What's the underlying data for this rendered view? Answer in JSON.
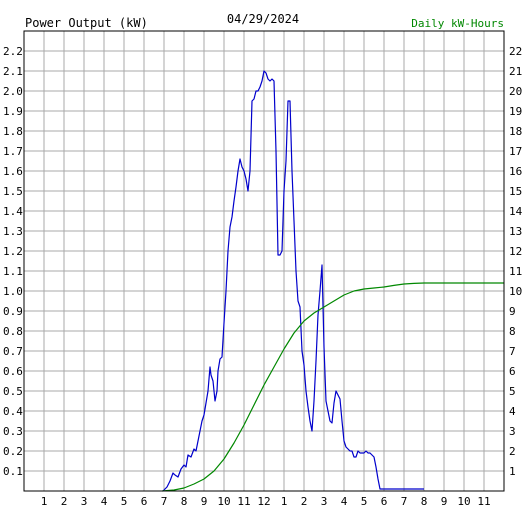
{
  "chart_data": {
    "type": "line",
    "title": "04/29/2024",
    "left_axis_label": "Power Output (kW)",
    "right_axis_label": "Daily kW-Hours",
    "left_axis_color": "#0000cc",
    "right_axis_color": "#008800",
    "grid": true,
    "x_ticks": [
      "1",
      "2",
      "3",
      "4",
      "5",
      "6",
      "7",
      "8",
      "9",
      "10",
      "11",
      "12",
      "1",
      "2",
      "3",
      "4",
      "5",
      "6",
      "7",
      "8",
      "9",
      "10",
      "11"
    ],
    "x_range": [
      0,
      24
    ],
    "left_ylim": [
      0,
      2.3
    ],
    "left_ticks": [
      "0.1",
      "0.2",
      "0.3",
      "0.4",
      "0.5",
      "0.6",
      "0.7",
      "0.8",
      "0.9",
      "1.0",
      "1.1",
      "1.2",
      "1.3",
      "1.4",
      "1.5",
      "1.6",
      "1.7",
      "1.8",
      "1.9",
      "2.0",
      "2.1",
      "2.2"
    ],
    "right_ylim": [
      0,
      23
    ],
    "right_ticks": [
      "1",
      "2",
      "3",
      "4",
      "5",
      "6",
      "7",
      "8",
      "9",
      "10",
      "11",
      "12",
      "13",
      "14",
      "15",
      "16",
      "17",
      "18",
      "19",
      "20",
      "21",
      "22"
    ],
    "series": [
      {
        "axis": "left",
        "color": "#0000cc",
        "x": [
          6.95,
          7.15,
          7.3,
          7.45,
          7.55,
          7.7,
          7.85,
          8.0,
          8.1,
          8.2,
          8.35,
          8.5,
          8.6,
          8.7,
          8.8,
          8.9,
          9.0,
          9.1,
          9.2,
          9.3,
          9.35,
          9.45,
          9.55,
          9.65,
          9.7,
          9.8,
          9.9,
          10.0,
          10.1,
          10.2,
          10.3,
          10.4,
          10.5,
          10.6,
          10.7,
          10.8,
          10.9,
          11.0,
          11.1,
          11.2,
          11.3,
          11.4,
          11.5,
          11.6,
          11.7,
          11.8,
          11.9,
          12.0,
          12.1,
          12.2,
          12.3,
          12.4,
          12.5,
          12.6,
          12.7,
          12.8,
          12.9,
          13.0,
          13.1,
          13.2,
          13.3,
          13.4,
          13.5,
          13.6,
          13.7,
          13.8,
          13.9,
          14.0,
          14.1,
          14.2,
          14.3,
          14.4,
          14.5,
          14.6,
          14.7,
          14.8,
          14.9,
          15.0,
          15.1,
          15.2,
          15.3,
          15.4,
          15.5,
          15.6,
          15.7,
          15.8,
          15.9,
          16.0,
          16.1,
          16.2,
          16.3,
          16.4,
          16.5,
          16.6,
          16.7,
          16.8,
          16.9,
          17.0,
          17.1,
          17.2,
          17.3,
          17.4,
          17.5,
          17.6,
          17.7,
          17.8,
          17.9,
          18.0,
          18.1,
          18.2,
          18.3,
          18.4,
          18.5,
          18.6,
          18.7,
          18.8,
          18.9,
          19.0,
          19.1,
          19.2,
          19.3,
          19.4,
          19.5,
          19.6,
          19.7,
          19.8,
          19.9,
          20.0
        ],
        "y": [
          0.0,
          0.02,
          0.05,
          0.09,
          0.08,
          0.07,
          0.11,
          0.13,
          0.12,
          0.18,
          0.17,
          0.21,
          0.2,
          0.25,
          0.3,
          0.35,
          0.38,
          0.44,
          0.5,
          0.62,
          0.58,
          0.55,
          0.45,
          0.5,
          0.6,
          0.66,
          0.67,
          0.84,
          1.0,
          1.2,
          1.32,
          1.37,
          1.45,
          1.52,
          1.6,
          1.66,
          1.62,
          1.6,
          1.56,
          1.5,
          1.6,
          1.95,
          1.96,
          2.0,
          2.0,
          2.02,
          2.05,
          2.1,
          2.09,
          2.06,
          2.05,
          2.06,
          2.05,
          1.7,
          1.18,
          1.18,
          1.2,
          1.5,
          1.65,
          1.95,
          1.95,
          1.6,
          1.35,
          1.1,
          0.95,
          0.92,
          0.7,
          0.63,
          0.5,
          0.42,
          0.35,
          0.3,
          0.45,
          0.65,
          0.88,
          1.0,
          1.13,
          0.72,
          0.45,
          0.4,
          0.35,
          0.34,
          0.44,
          0.5,
          0.48,
          0.46,
          0.35,
          0.25,
          0.22,
          0.21,
          0.2,
          0.2,
          0.17,
          0.17,
          0.2,
          0.19,
          0.19,
          0.19,
          0.2,
          0.19,
          0.19,
          0.18,
          0.17,
          0.12,
          0.06,
          0.01,
          0.01,
          0.01,
          0.01,
          0.01,
          0.01,
          0.01,
          0.01,
          0.01,
          0.01,
          0.01,
          0.01,
          0.01,
          0.01,
          0.01,
          0.01,
          0.01,
          0.01,
          0.01,
          0.01,
          0.01,
          0.01,
          0.01
        ]
      },
      {
        "axis": "right",
        "color": "#008800",
        "x": [
          6.9,
          7.5,
          8.0,
          8.5,
          9.0,
          9.5,
          10.0,
          10.5,
          11.0,
          11.5,
          12.0,
          12.5,
          13.0,
          13.5,
          14.0,
          14.5,
          15.0,
          15.5,
          16.0,
          16.5,
          17.0,
          17.5,
          18.0,
          18.5,
          19.0,
          19.5,
          20.0,
          21.0,
          22.0,
          23.0,
          24.0
        ],
        "y": [
          0.0,
          0.05,
          0.15,
          0.35,
          0.6,
          1.0,
          1.6,
          2.4,
          3.3,
          4.3,
          5.3,
          6.2,
          7.1,
          7.9,
          8.5,
          8.9,
          9.2,
          9.5,
          9.8,
          10.0,
          10.1,
          10.15,
          10.2,
          10.28,
          10.35,
          10.38,
          10.4,
          10.4,
          10.4,
          10.4,
          10.4
        ]
      }
    ]
  }
}
